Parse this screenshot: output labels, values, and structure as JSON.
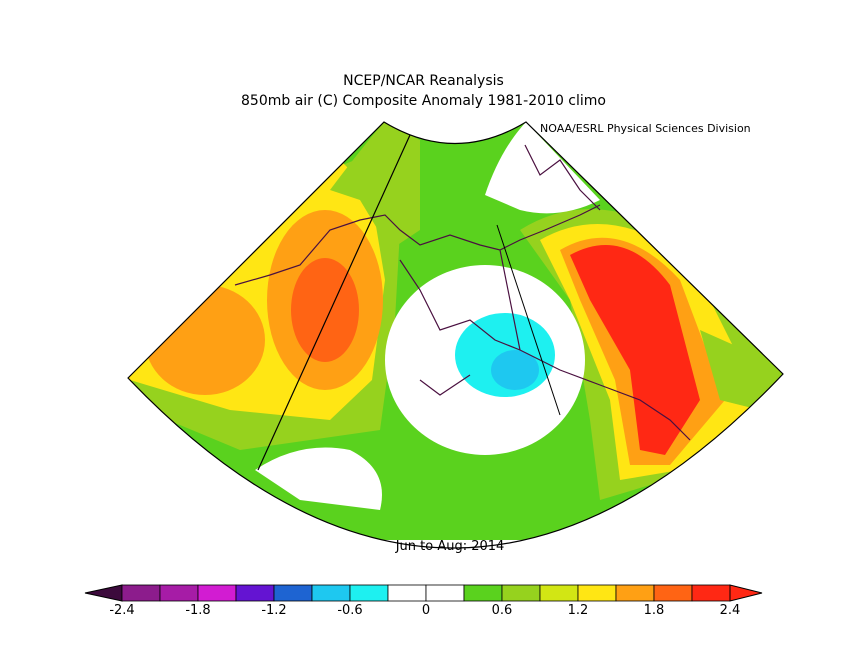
{
  "titles": {
    "line1": "NCEP/NCAR Reanalysis",
    "line2": "850mb air (C) Composite Anomaly 1981-2010 climo",
    "credit": "NOAA/ESRL Physical Sciences Division",
    "period": "Jun to Aug: 2014"
  },
  "colorbar": {
    "colors": [
      "#8c1c8c",
      "#a61ca6",
      "#d21cd2",
      "#6414d2",
      "#1e64d2",
      "#1ec8f0",
      "#1ef0f0",
      "#ffffff",
      "#ffffff",
      "#5ad21e",
      "#96d21e",
      "#d2e614",
      "#ffe614",
      "#ffa014",
      "#ff6414",
      "#ff2814"
    ],
    "tick_labels": [
      "-2.4",
      "-1.8",
      "-1.2",
      "-0.6",
      "0",
      "0.6",
      "1.2",
      "1.8",
      "2.4"
    ]
  }
}
